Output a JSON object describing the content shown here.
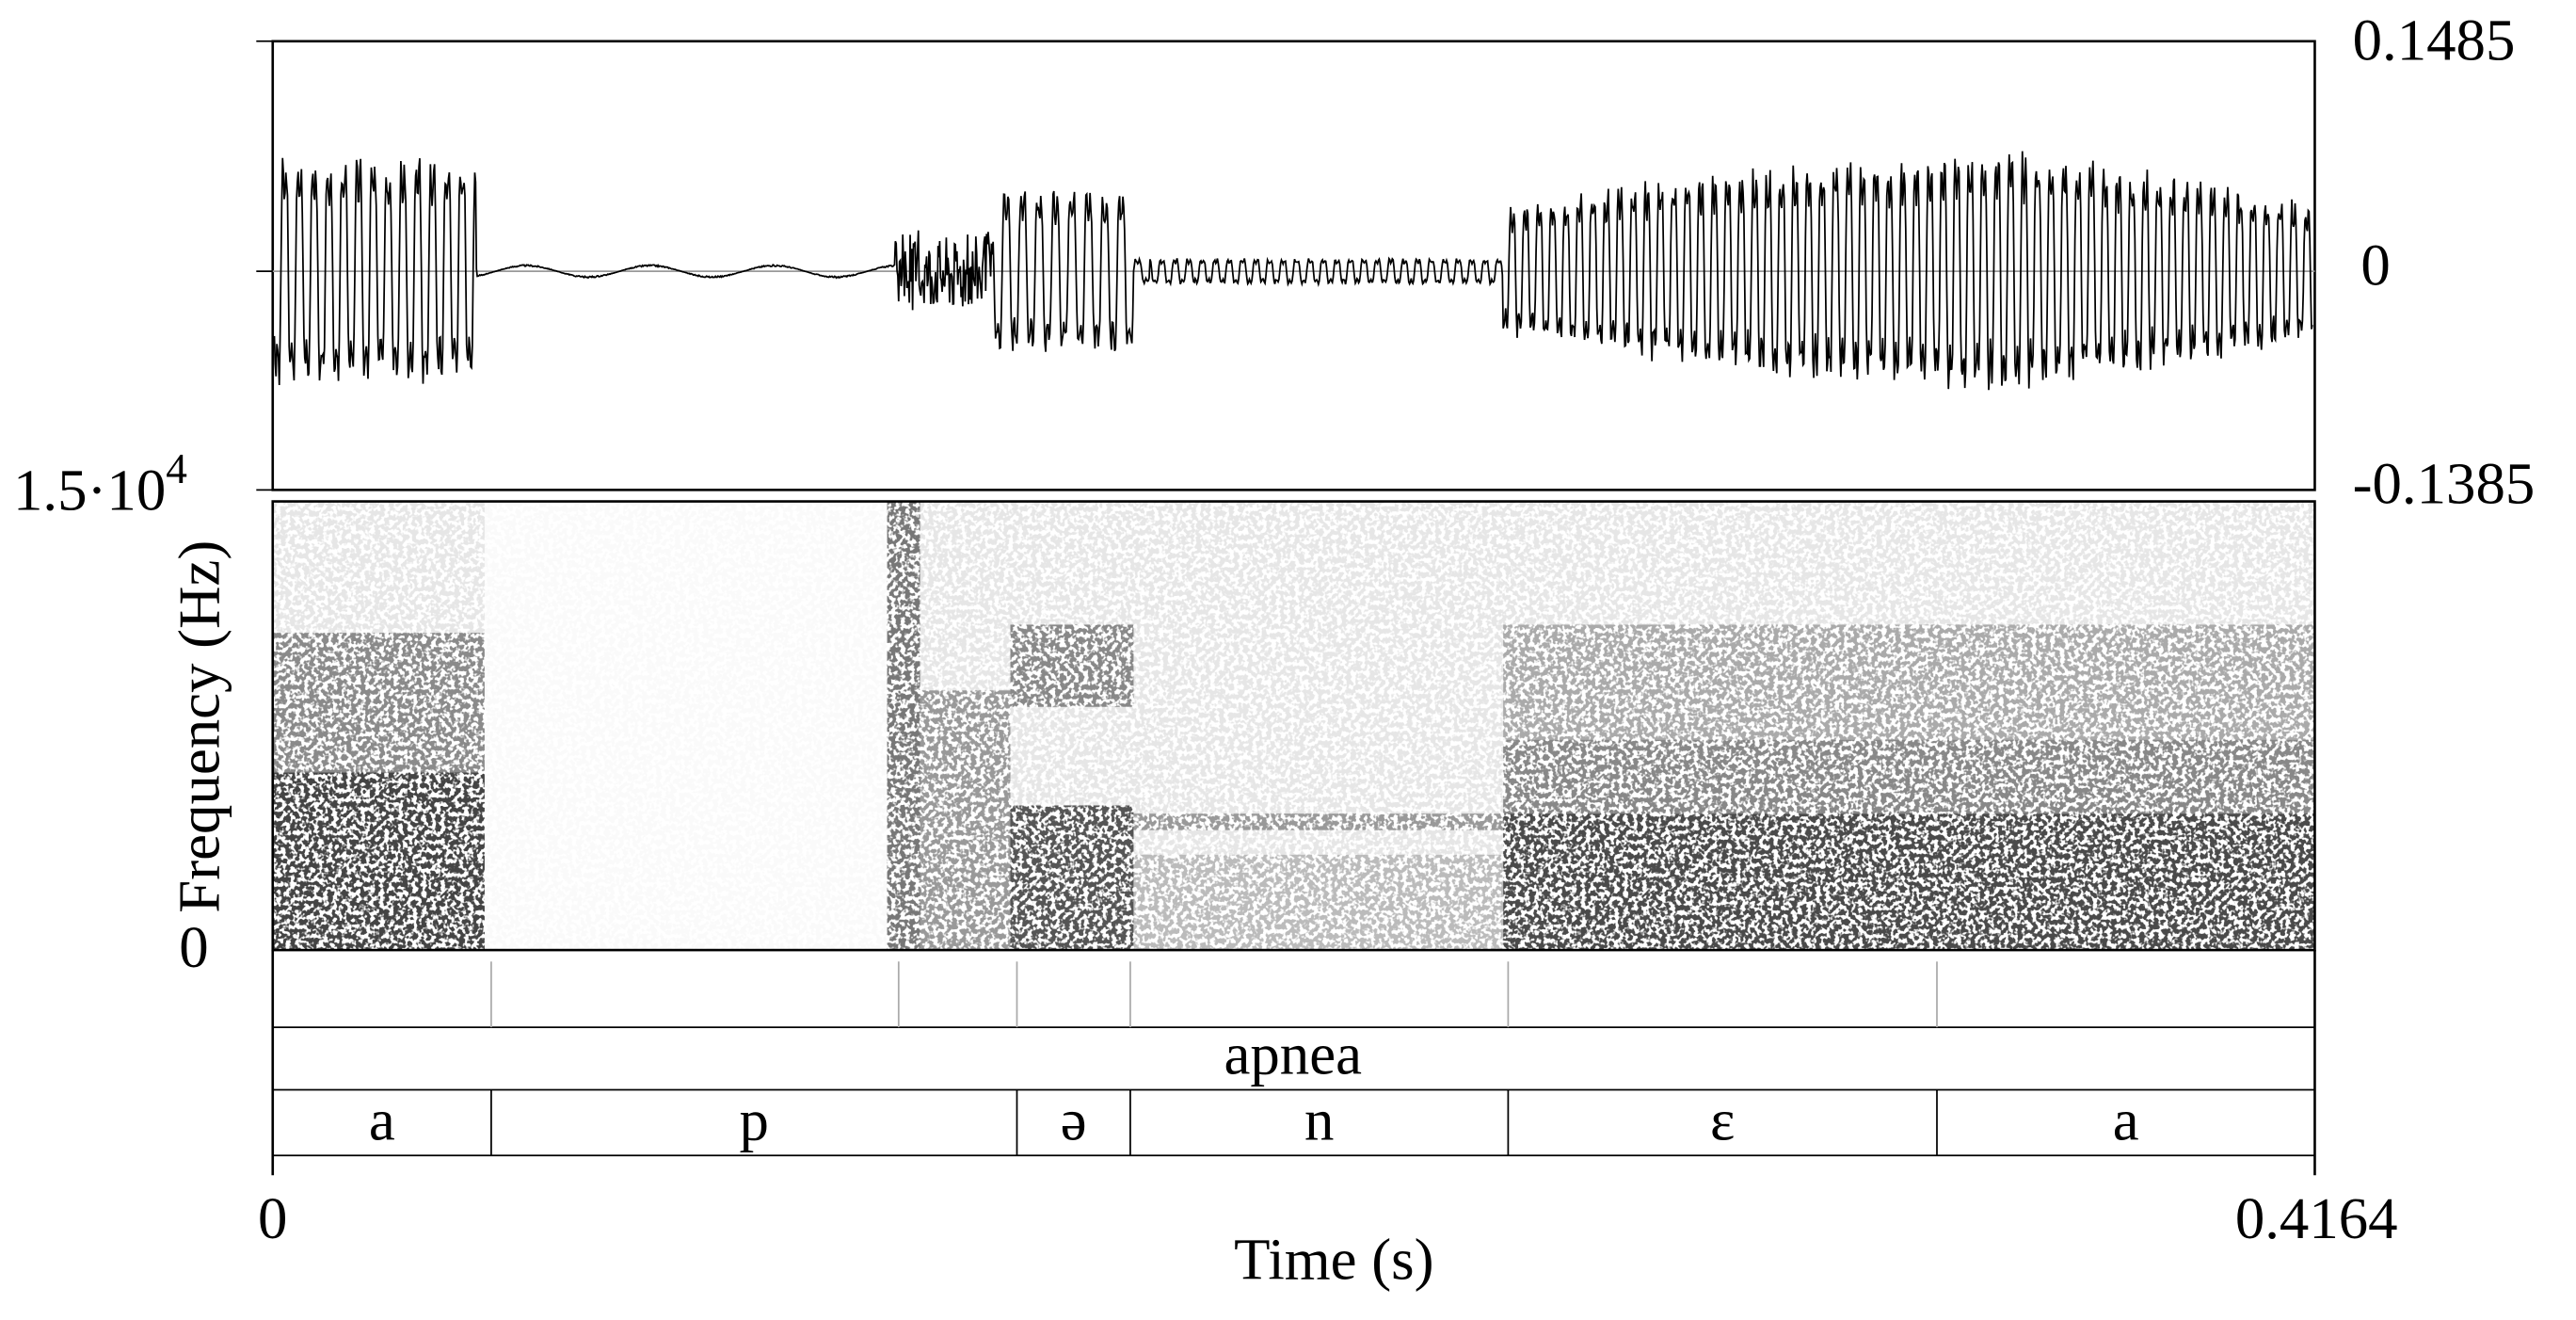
{
  "waveform": {
    "y_max_label": "0.1485",
    "y_zero_label": "0",
    "y_min_label": "-0.1385"
  },
  "spectrogram": {
    "y_max_label": {
      "base": "1.5·10",
      "exponent": "4"
    },
    "y_min_label": "0",
    "y_axis_label": "Frequency (Hz)"
  },
  "textgrid": {
    "word_tier": [
      "apnea"
    ],
    "phone_tier": [
      "a",
      "p",
      "ə",
      "n",
      "ε",
      "a"
    ]
  },
  "time_axis": {
    "start_label": "0",
    "end_label": "0.4164",
    "label": "Time (s)"
  }
}
